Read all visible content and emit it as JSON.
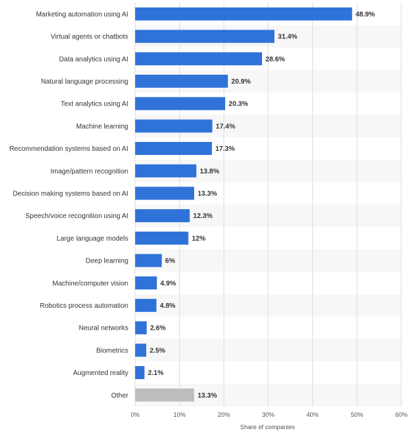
{
  "chart_data": {
    "type": "bar",
    "orientation": "horizontal",
    "categories": [
      "Marketing automation using AI",
      "Virtual agents or chatbots",
      "Data analytics using AI",
      "Natural language processing",
      "Text analytics using AI",
      "Machine learning",
      "Recommendation systems based on AI",
      "Image/pattern recognition",
      "Decision making systems based on AI",
      "Speech/voice recognition using AI",
      "Large language models",
      "Deep learning",
      "Machine/computer vision",
      "Robotics process automation",
      "Neural networks",
      "Biometrics",
      "Augmented reality",
      "Other"
    ],
    "values": [
      48.9,
      31.4,
      28.6,
      20.9,
      20.3,
      17.4,
      17.3,
      13.8,
      13.3,
      12.3,
      12,
      6,
      4.9,
      4.8,
      2.6,
      2.5,
      2.1,
      13.3
    ],
    "value_labels": [
      "48.9%",
      "31.4%",
      "28.6%",
      "20.9%",
      "20.3%",
      "17.4%",
      "17.3%",
      "13.8%",
      "13.3%",
      "12.3%",
      "12%",
      "6%",
      "4.9%",
      "4.8%",
      "2.6%",
      "2.5%",
      "2.1%",
      "13.3%"
    ],
    "xlabel": "Share of companies",
    "ylabel": "",
    "xlim": [
      0,
      60
    ],
    "x_ticks": [
      0,
      10,
      20,
      30,
      40,
      50,
      60
    ],
    "x_tick_labels": [
      "0%",
      "10%",
      "20%",
      "30%",
      "40%",
      "50%",
      "60%"
    ],
    "grid": true,
    "colors": {
      "bar": "#2f73d9",
      "other_bar": "#bdbdbd",
      "stripe": "#f7f7f7",
      "grid": "#dddddd"
    }
  }
}
